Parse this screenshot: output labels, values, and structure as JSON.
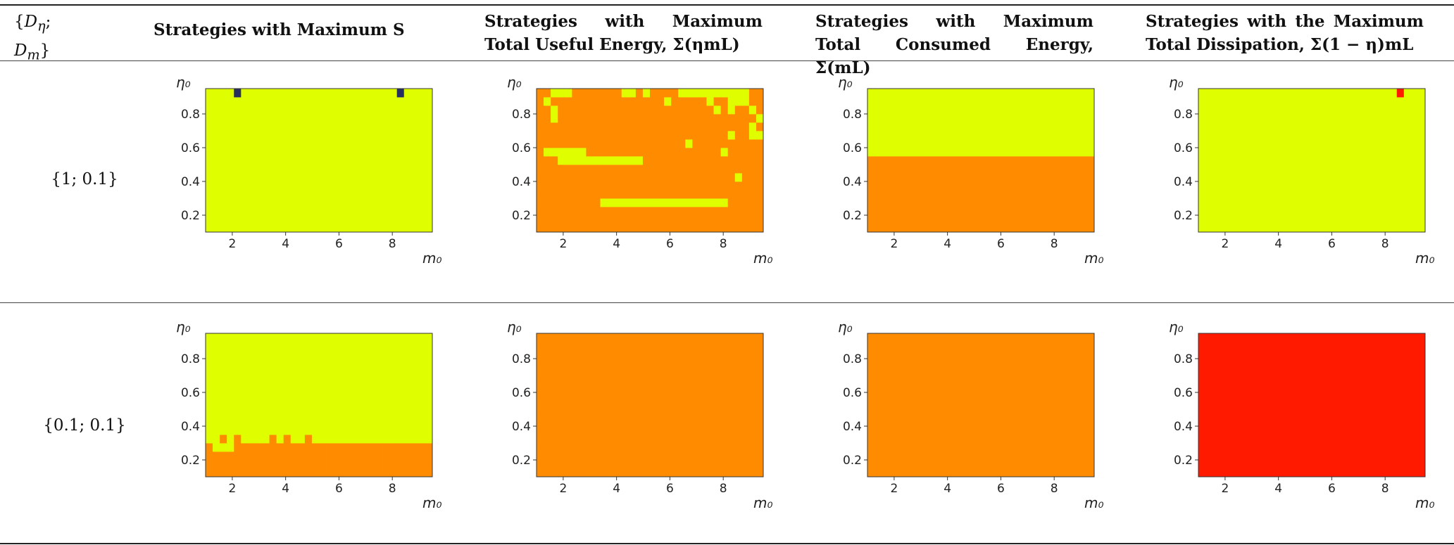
{
  "table": {
    "param_header": "{D_η; D_m}",
    "headers": [
      "Strategies with Maximum S",
      "Strategies with Maximum Total Useful Energy, Σ(ηmL)",
      "Strategies with Maximum Total Consumed Energy, Σ(mL)",
      "Strategies with the Maximum Total Dissipation, Σ(1 − η)mL"
    ],
    "rows": [
      "{1; 0.1}",
      "{0.1; 0.1}"
    ]
  },
  "colors": {
    "a": "#dfff00",
    "b": "#ff8c00",
    "c": "#ff1a00",
    "d": "#262f5e"
  },
  "chart_data": [
    {
      "id": "r1c1",
      "type": "heatmap",
      "xlabel": "m₀",
      "ylabel": "η₀",
      "xlim": [
        1,
        9.5
      ],
      "ylim": [
        0.1,
        0.95
      ],
      "xticks": [
        2,
        4,
        6,
        8
      ],
      "yticks": [
        0.2,
        0.4,
        0.6,
        0.8
      ],
      "grid": [
        "00000000000000000000000000000000",
        "00000000000000000000000000000000",
        "00000000000000000000000000000000",
        "00000000000000000000000000000000",
        "00000000000000000000000000000000",
        "00000000000000000000000000000000",
        "00000000000000000000000000000000",
        "00000000000000000000000000000000",
        "00000000000000000000000000000000",
        "00000000000000000000000000000000",
        "00000000000000000000000000000000",
        "00000000000000000000000000000000",
        "00000000000000000000000000000000",
        "00000000000000000000000000000000",
        "00000000000000000000000000000000",
        "00000000000000000000000000000000",
        "00003000000000000000000000030000"
      ]
    },
    {
      "id": "r1c2",
      "type": "heatmap",
      "xlabel": "m₀",
      "ylabel": "η₀",
      "xlim": [
        1,
        9.5
      ],
      "ylim": [
        0.1,
        0.95
      ],
      "xticks": [
        2,
        4,
        6,
        8
      ],
      "yticks": [
        0.2,
        0.4,
        0.6,
        0.8
      ],
      "grid": [
        "11111111111111111111111111111111",
        "11111111111111111111111111111111",
        "11111111111111111111111111111111",
        "11111111100000000000000000011111",
        "11111111111111111111111111111111",
        "11111111111111111111111111111111",
        "11111111111111111111111111110111",
        "11111111111111111111111111111111",
        "11100000000000011111111111111111",
        "10000001111111111111111111011111",
        "11111111111111111111101111111111",
        "11111111111111111111111111101100",
        "11111111111111111111111111111101",
        "11011111111111111111111111111110",
        "11011111111111111111111110101101",
        "10111111111111111101111101100011",
        "11000111111100101111000000000011"
      ]
    },
    {
      "id": "r1c3",
      "type": "heatmap",
      "xlabel": "m₀",
      "ylabel": "η₀",
      "xlim": [
        1,
        9.5
      ],
      "ylim": [
        0.1,
        0.95
      ],
      "xticks": [
        2,
        4,
        6,
        8
      ],
      "yticks": [
        0.2,
        0.4,
        0.6,
        0.8
      ],
      "grid": [
        "11111111111111111111111111111111",
        "11111111111111111111111111111111",
        "11111111111111111111111111111111",
        "11111111111111111111111111111111",
        "11111111111111111111111111111111",
        "11111111111111111111111111111111",
        "11111111111111111111111111111111",
        "11111111111111111111111111111111",
        "11111111111111111111111111111111",
        "00000000000000000000000000000000",
        "00000000000000000000000000000000",
        "00000000000000000000000000000000",
        "00000000000000000000000000000000",
        "00000000000000000000000000000000",
        "00000000000000000000000000000000",
        "00000000000000000000000000000000",
        "00000000000000000000000000000000"
      ]
    },
    {
      "id": "r1c4",
      "type": "heatmap",
      "xlabel": "m₀",
      "ylabel": "η₀",
      "xlim": [
        1,
        9.5
      ],
      "ylim": [
        0.1,
        0.95
      ],
      "xticks": [
        2,
        4,
        6,
        8
      ],
      "yticks": [
        0.2,
        0.4,
        0.6,
        0.8
      ],
      "grid": [
        "00000000000000000000000000000000",
        "00000000000000000000000000000000",
        "00000000000000000000000000000000",
        "00000000000000000000000000000000",
        "00000000000000000000000000000000",
        "00000000000000000000000000000000",
        "00000000000000000000000000000000",
        "00000000000000000000000000000000",
        "00000000000000000000000000000000",
        "00000000000000000000000000000000",
        "00000000000000000000000000000000",
        "00000000000000000000000000000000",
        "00000000000000000000000000000000",
        "00000000000000000000000000000000",
        "00000000000000000000000000000000",
        "00000000000000000000000000000000",
        "00000000000000000000000000002000"
      ]
    },
    {
      "id": "r2c1",
      "type": "heatmap",
      "xlabel": "m₀",
      "ylabel": "η₀",
      "xlim": [
        1,
        9.5
      ],
      "ylim": [
        0.1,
        0.95
      ],
      "xticks": [
        2,
        4,
        6,
        8
      ],
      "yticks": [
        0.2,
        0.4,
        0.6,
        0.8
      ],
      "grid": [
        "11111111111111111111111111111111",
        "11111111111111111111111111111111",
        "11111111111111111111111111111111",
        "10001111111111111111111111111111",
        "00101000010100100000000000000000",
        "00000000000000000000000000000000",
        "00000000000000000000000000000000",
        "00000000000000000000000000000000",
        "00000000000000000000000000000000",
        "00000000000000000000000000000000",
        "00000000000000000000000000000000",
        "00000000000000000000000000000000",
        "00000000000000000000000000000000",
        "00000000000000000000000000000000",
        "00000000000000000000000000000000",
        "00000000000000000000000000000000",
        "00000000000000000000000000000000"
      ]
    },
    {
      "id": "r2c2",
      "type": "heatmap",
      "xlabel": "m₀",
      "ylabel": "η₀",
      "xlim": [
        1,
        9.5
      ],
      "ylim": [
        0.1,
        0.95
      ],
      "xticks": [
        2,
        4,
        6,
        8
      ],
      "yticks": [
        0.2,
        0.4,
        0.6,
        0.8
      ],
      "grid": [
        "11111111111111111111111111111111",
        "11111111111111111111111111111111",
        "11111111111111111111111111111111",
        "11111111111111111111111111111111",
        "11111111111111111111111111111111",
        "11111111111111111111111111111111",
        "11111111111111111111111111111111",
        "11111111111111111111111111111111",
        "11111111111111111111111111111111",
        "11111111111111111111111111111111",
        "11111111111111111111111111111111",
        "11111111111111111111111111111111",
        "11111111111111111111111111111111",
        "11111111111111111111111111111111",
        "11111111111111111111111111111111",
        "11111111111111111111111111111111",
        "11111111111111111111111111111111"
      ]
    },
    {
      "id": "r2c3",
      "type": "heatmap",
      "xlabel": "m₀",
      "ylabel": "η₀",
      "xlim": [
        1,
        9.5
      ],
      "ylim": [
        0.1,
        0.95
      ],
      "xticks": [
        2,
        4,
        6,
        8
      ],
      "yticks": [
        0.2,
        0.4,
        0.6,
        0.8
      ],
      "grid": [
        "11111111111111111111111111111111",
        "11111111111111111111111111111111",
        "11111111111111111111111111111111",
        "11111111111111111111111111111111",
        "11111111111111111111111111111111",
        "11111111111111111111111111111111",
        "11111111111111111111111111111111",
        "11111111111111111111111111111111",
        "11111111111111111111111111111111",
        "11111111111111111111111111111111",
        "11111111111111111111111111111111",
        "11111111111111111111111111111111",
        "11111111111111111111111111111111",
        "11111111111111111111111111111111",
        "11111111111111111111111111111111",
        "11111111111111111111111111111111",
        "11111111111111111111111111111111"
      ]
    },
    {
      "id": "r2c4",
      "type": "heatmap",
      "xlabel": "m₀",
      "ylabel": "η₀",
      "xlim": [
        1,
        9.5
      ],
      "ylim": [
        0.1,
        0.95
      ],
      "xticks": [
        2,
        4,
        6,
        8
      ],
      "yticks": [
        0.2,
        0.4,
        0.6,
        0.8
      ],
      "grid": [
        "22222222222222222222222222222222",
        "22222222222222222222222222222222",
        "22222222222222222222222222222222",
        "22222222222222222222222222222222",
        "22222222222222222222222222222222",
        "22222222222222222222222222222222",
        "22222222222222222222222222222222",
        "22222222222222222222222222222222",
        "22222222222222222222222222222222",
        "22222222222222222222222222222222",
        "22222222222222222222222222222222",
        "22222222222222222222222222222222",
        "22222222222222222222222222222222",
        "22222222222222222222222222222222",
        "22222222222222222222222222222222",
        "22222222222222222222222222222222",
        "22222222222222222222222222222222"
      ]
    }
  ]
}
